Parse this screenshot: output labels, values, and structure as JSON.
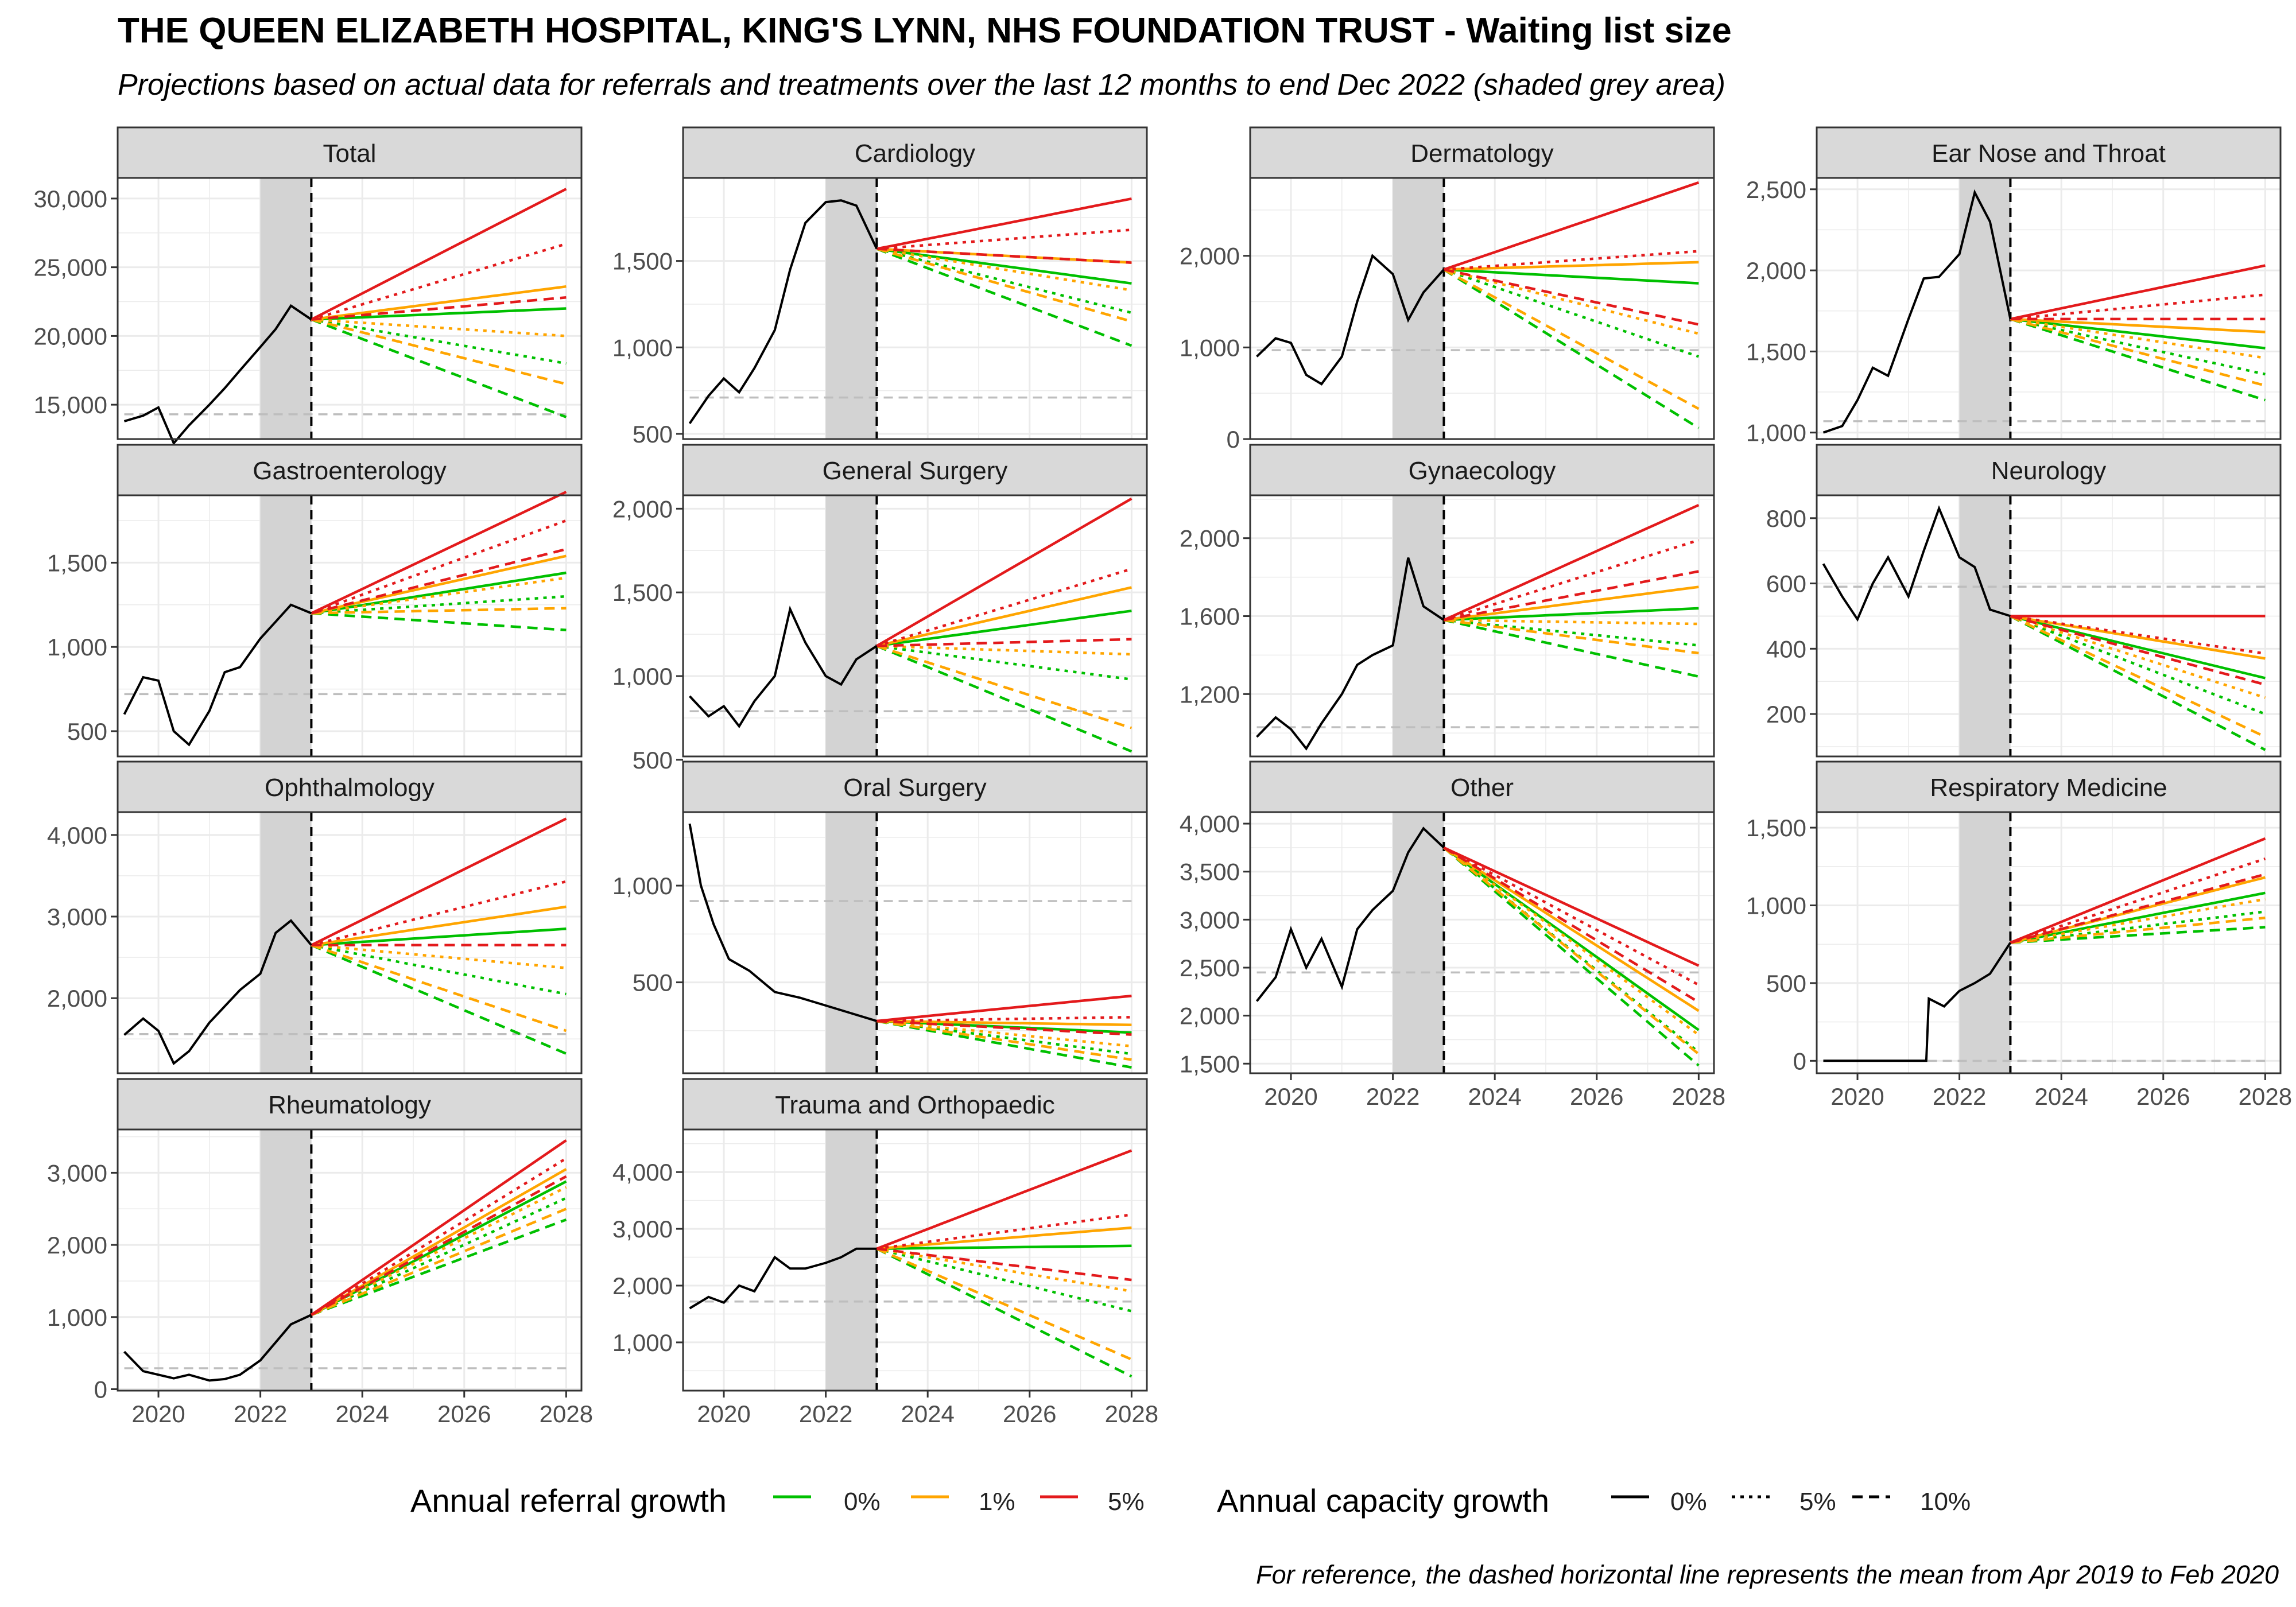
{
  "title": "THE QUEEN ELIZABETH HOSPITAL, KING'S LYNN, NHS FOUNDATION TRUST - Waiting list size",
  "subtitle": "Projections based on actual data for referrals and treatments over the last 12 months to end Dec 2022 (shaded grey area)",
  "caption": "For reference, the dashed horizontal line represents the mean from Apr 2019 to Feb 2020",
  "colors": {
    "referral_0": "#00c000",
    "referral_1": "#ffa500",
    "referral_5": "#e31a1c",
    "actual": "#000000",
    "reference": "#bebebe",
    "shade": "#d3d3d3",
    "strip": "#d9d9d9"
  },
  "legend": {
    "referral_title": "Annual referral growth",
    "referral_items": [
      {
        "label": "0%",
        "color": "#00c000"
      },
      {
        "label": "1%",
        "color": "#ffa500"
      },
      {
        "label": "5%",
        "color": "#e31a1c"
      }
    ],
    "capacity_title": "Annual capacity growth",
    "capacity_items": [
      {
        "label": "0%",
        "dash": "solid"
      },
      {
        "label": "5%",
        "dash": "dotted"
      },
      {
        "label": "10%",
        "dash": "dashed"
      }
    ]
  },
  "chart_data": {
    "type": "line",
    "x_ticks": [
      2020,
      2022,
      2024,
      2026,
      2028
    ],
    "xlim": [
      2019.2,
      2028.3
    ],
    "shaded_period": [
      2022.0,
      2023.0
    ],
    "projection_start": 2023.0,
    "projection_end": 2028.0,
    "referral_growth": [
      "0%",
      "1%",
      "5%"
    ],
    "capacity_growth": [
      "0%",
      "5%",
      "10%"
    ],
    "panels": [
      {
        "name": "Total",
        "ylim": [
          12500,
          31500
        ],
        "y_ticks": [
          "15,000",
          "20,000",
          "25,000",
          "30,000"
        ],
        "y_tick_values": [
          15000,
          20000,
          25000,
          30000
        ],
        "reference": 14300,
        "actual_x": [
          2019.33,
          2019.7,
          2020.0,
          2020.3,
          2020.6,
          2021.0,
          2021.3,
          2021.6,
          2022.0,
          2022.3,
          2022.6,
          2023.0
        ],
        "actual_y": [
          13800,
          14200,
          14800,
          12200,
          13500,
          15000,
          16200,
          17500,
          19200,
          20500,
          22200,
          21200
        ],
        "start": 21200,
        "ends": {
          "r0": [
            22000,
            18000,
            14100
          ],
          "r1": [
            23600,
            20000,
            16500
          ],
          "r5": [
            30700,
            26700,
            22800
          ]
        }
      },
      {
        "name": "Cardiology",
        "ylim": [
          470,
          1980
        ],
        "y_ticks": [
          "500",
          "1,000",
          "1,500"
        ],
        "y_tick_values": [
          500,
          1000,
          1500
        ],
        "reference": 710,
        "actual_x": [
          2019.33,
          2019.7,
          2020.0,
          2020.3,
          2020.6,
          2021.0,
          2021.3,
          2021.6,
          2022.0,
          2022.3,
          2022.6,
          2023.0
        ],
        "actual_y": [
          560,
          720,
          820,
          740,
          880,
          1100,
          1450,
          1720,
          1840,
          1850,
          1820,
          1570
        ],
        "start": 1570,
        "ends": {
          "r0": [
            1370,
            1200,
            1010
          ],
          "r1": [
            1490,
            1330,
            1150
          ],
          "r5": [
            1860,
            1680,
            1490
          ]
        }
      },
      {
        "name": "Dermatology",
        "ylim": [
          0,
          2850
        ],
        "y_ticks": [
          "0",
          "1,000",
          "2,000"
        ],
        "y_tick_values": [
          0,
          1000,
          2000
        ],
        "reference": 970,
        "actual_x": [
          2019.33,
          2019.7,
          2020.0,
          2020.3,
          2020.6,
          2021.0,
          2021.3,
          2021.6,
          2022.0,
          2022.3,
          2022.6,
          2023.0
        ],
        "actual_y": [
          900,
          1100,
          1050,
          700,
          600,
          900,
          1500,
          2000,
          1800,
          1300,
          1600,
          1850
        ],
        "start": 1850,
        "ends": {
          "r0": [
            1700,
            900,
            120
          ],
          "r1": [
            1930,
            1150,
            330
          ],
          "r5": [
            2800,
            2050,
            1250
          ]
        }
      },
      {
        "name": "Ear Nose and Throat",
        "ylim": [
          960,
          2570
        ],
        "y_ticks": [
          "1,000",
          "1,500",
          "2,000",
          "2,500"
        ],
        "y_tick_values": [
          1000,
          1500,
          2000,
          2500
        ],
        "reference": 1070,
        "actual_x": [
          2019.33,
          2019.7,
          2020.0,
          2020.3,
          2020.6,
          2021.0,
          2021.3,
          2021.6,
          2022.0,
          2022.3,
          2022.6,
          2023.0
        ],
        "actual_y": [
          1000,
          1040,
          1200,
          1400,
          1350,
          1700,
          1950,
          1960,
          2100,
          2480,
          2300,
          1700
        ],
        "start": 1700,
        "ends": {
          "r0": [
            1520,
            1360,
            1200
          ],
          "r1": [
            1620,
            1460,
            1290
          ],
          "r5": [
            2030,
            1850,
            1700
          ]
        }
      },
      {
        "name": "Gastroenterology",
        "ylim": [
          350,
          1900
        ],
        "y_ticks": [
          "500",
          "1,000",
          "1,500"
        ],
        "y_tick_values": [
          500,
          1000,
          1500
        ],
        "reference": 720,
        "actual_x": [
          2019.33,
          2019.7,
          2020.0,
          2020.3,
          2020.6,
          2021.0,
          2021.3,
          2021.6,
          2022.0,
          2022.3,
          2022.6,
          2023.0
        ],
        "actual_y": [
          600,
          820,
          800,
          500,
          420,
          620,
          850,
          880,
          1050,
          1150,
          1250,
          1200
        ],
        "start": 1200,
        "ends": {
          "r0": [
            1440,
            1300,
            1100
          ],
          "r1": [
            1540,
            1410,
            1230
          ],
          "r5": [
            1920,
            1750,
            1580
          ]
        }
      },
      {
        "name": "General Surgery",
        "ylim": [
          520,
          2080
        ],
        "y_ticks": [
          "500",
          "1,000",
          "1,500",
          "2,000"
        ],
        "y_tick_values": [
          500,
          1000,
          1500,
          2000
        ],
        "reference": 790,
        "actual_x": [
          2019.33,
          2019.7,
          2020.0,
          2020.3,
          2020.6,
          2021.0,
          2021.3,
          2021.6,
          2022.0,
          2022.3,
          2022.6,
          2023.0
        ],
        "actual_y": [
          880,
          760,
          820,
          700,
          850,
          1000,
          1400,
          1200,
          1000,
          950,
          1100,
          1180
        ],
        "start": 1180,
        "ends": {
          "r0": [
            1390,
            980,
            550
          ],
          "r1": [
            1530,
            1130,
            690
          ],
          "r5": [
            2060,
            1640,
            1220
          ]
        }
      },
      {
        "name": "Gynaecology",
        "ylim": [
          880,
          2220
        ],
        "y_ticks": [
          "1,200",
          "1,600",
          "2,000"
        ],
        "y_tick_values": [
          1200,
          1600,
          2000
        ],
        "reference": 1030,
        "actual_x": [
          2019.33,
          2019.7,
          2020.0,
          2020.3,
          2020.6,
          2021.0,
          2021.3,
          2021.6,
          2022.0,
          2022.3,
          2022.6,
          2023.0
        ],
        "actual_y": [
          980,
          1080,
          1020,
          920,
          1050,
          1200,
          1350,
          1400,
          1450,
          1900,
          1650,
          1580
        ],
        "start": 1580,
        "ends": {
          "r0": [
            1640,
            1450,
            1290
          ],
          "r1": [
            1750,
            1560,
            1410
          ],
          "r5": [
            2170,
            1990,
            1830
          ]
        }
      },
      {
        "name": "Neurology",
        "ylim": [
          70,
          870
        ],
        "y_ticks": [
          "200",
          "400",
          "600",
          "800"
        ],
        "y_tick_values": [
          200,
          400,
          600,
          800
        ],
        "reference": 590,
        "actual_x": [
          2019.33,
          2019.7,
          2020.0,
          2020.3,
          2020.6,
          2021.0,
          2021.3,
          2021.6,
          2022.0,
          2022.3,
          2022.6,
          2023.0
        ],
        "actual_y": [
          660,
          560,
          490,
          600,
          680,
          560,
          700,
          830,
          680,
          650,
          520,
          500
        ],
        "start": 500,
        "ends": {
          "r0": [
            310,
            200,
            90
          ],
          "r1": [
            370,
            250,
            130
          ],
          "r5": [
            500,
            385,
            290
          ]
        }
      },
      {
        "name": "Ophthalmology",
        "ylim": [
          1080,
          4280
        ],
        "y_ticks": [
          "2,000",
          "3,000",
          "4,000"
        ],
        "y_tick_values": [
          2000,
          3000,
          4000
        ],
        "reference": 1560,
        "actual_x": [
          2019.33,
          2019.7,
          2020.0,
          2020.3,
          2020.6,
          2021.0,
          2021.3,
          2021.6,
          2022.0,
          2022.3,
          2022.6,
          2023.0
        ],
        "actual_y": [
          1550,
          1750,
          1600,
          1200,
          1350,
          1700,
          1900,
          2100,
          2300,
          2800,
          2950,
          2650
        ],
        "start": 2650,
        "ends": {
          "r0": [
            2850,
            2050,
            1320
          ],
          "r1": [
            3120,
            2370,
            1600
          ],
          "r5": [
            4200,
            3430,
            2650
          ]
        }
      },
      {
        "name": "Oral Surgery",
        "ylim": [
          30,
          1380
        ],
        "y_ticks": [
          "500",
          "1,000"
        ],
        "y_tick_values": [
          500,
          1000
        ],
        "reference": 920,
        "actual_x": [
          2019.33,
          2019.55,
          2019.8,
          2020.1,
          2020.5,
          2021.0,
          2021.5,
          2022.0,
          2022.5,
          2023.0
        ],
        "actual_y": [
          1320,
          1000,
          800,
          620,
          560,
          450,
          420,
          380,
          340,
          300
        ],
        "start": 300,
        "ends": {
          "r0": [
            240,
            130,
            60
          ],
          "r1": [
            280,
            170,
            100
          ],
          "r5": [
            430,
            320,
            230
          ]
        }
      },
      {
        "name": "Other",
        "ylim": [
          1400,
          4120
        ],
        "y_ticks": [
          "1,500",
          "2,000",
          "2,500",
          "3,000",
          "3,500",
          "4,000"
        ],
        "y_tick_values": [
          1500,
          2000,
          2500,
          3000,
          3500,
          4000
        ],
        "reference": 2450,
        "actual_x": [
          2019.33,
          2019.7,
          2020.0,
          2020.3,
          2020.6,
          2021.0,
          2021.3,
          2021.6,
          2022.0,
          2022.3,
          2022.6,
          2023.0
        ],
        "actual_y": [
          2150,
          2400,
          2900,
          2500,
          2800,
          2300,
          2900,
          3100,
          3300,
          3700,
          3950,
          3750
        ],
        "start": 3750,
        "ends": {
          "r0": [
            1850,
            1620,
            1480
          ],
          "r1": [
            2050,
            1800,
            1600
          ],
          "r5": [
            2520,
            2320,
            2140
          ]
        }
      },
      {
        "name": "Respiratory Medicine",
        "ylim": [
          -80,
          1600
        ],
        "y_ticks": [
          "0",
          "500",
          "1,000",
          "1,500"
        ],
        "y_tick_values": [
          0,
          500,
          1000,
          1500
        ],
        "reference": 0,
        "actual_x": [
          2019.33,
          2020.0,
          2021.0,
          2021.35,
          2021.4,
          2021.7,
          2022.0,
          2022.3,
          2022.6,
          2023.0
        ],
        "actual_y": [
          0,
          0,
          0,
          0,
          400,
          350,
          450,
          500,
          560,
          760
        ],
        "start": 760,
        "ends": {
          "r0": [
            1080,
            960,
            860
          ],
          "r1": [
            1180,
            1040,
            920
          ],
          "r5": [
            1430,
            1300,
            1200
          ]
        }
      },
      {
        "name": "Rheumatology",
        "ylim": [
          -20,
          3600
        ],
        "y_ticks": [
          "0",
          "1,000",
          "2,000",
          "3,000"
        ],
        "y_tick_values": [
          0,
          1000,
          2000,
          3000
        ],
        "reference": 290,
        "actual_x": [
          2019.33,
          2019.7,
          2020.0,
          2020.3,
          2020.6,
          2021.0,
          2021.3,
          2021.6,
          2022.0,
          2022.3,
          2022.6,
          2023.0
        ],
        "actual_y": [
          520,
          250,
          200,
          150,
          200,
          120,
          140,
          200,
          400,
          650,
          900,
          1030
        ],
        "start": 1030,
        "ends": {
          "r0": [
            2880,
            2650,
            2350
          ],
          "r1": [
            3050,
            2800,
            2500
          ],
          "r5": [
            3450,
            3200,
            2950
          ]
        }
      },
      {
        "name": "Trauma and Orthopaedic",
        "ylim": [
          150,
          4750
        ],
        "y_ticks": [
          "1,000",
          "2,000",
          "3,000",
          "4,000"
        ],
        "y_tick_values": [
          1000,
          2000,
          3000,
          4000
        ],
        "reference": 1720,
        "actual_x": [
          2019.33,
          2019.7,
          2020.0,
          2020.3,
          2020.6,
          2021.0,
          2021.3,
          2021.6,
          2022.0,
          2022.3,
          2022.6,
          2023.0
        ],
        "actual_y": [
          1600,
          1800,
          1700,
          2000,
          1900,
          2500,
          2300,
          2300,
          2400,
          2500,
          2650,
          2650
        ],
        "start": 2650,
        "ends": {
          "r0": [
            2700,
            1550,
            400
          ],
          "r1": [
            3020,
            1900,
            700
          ],
          "r5": [
            4380,
            3250,
            2100
          ]
        }
      }
    ]
  }
}
